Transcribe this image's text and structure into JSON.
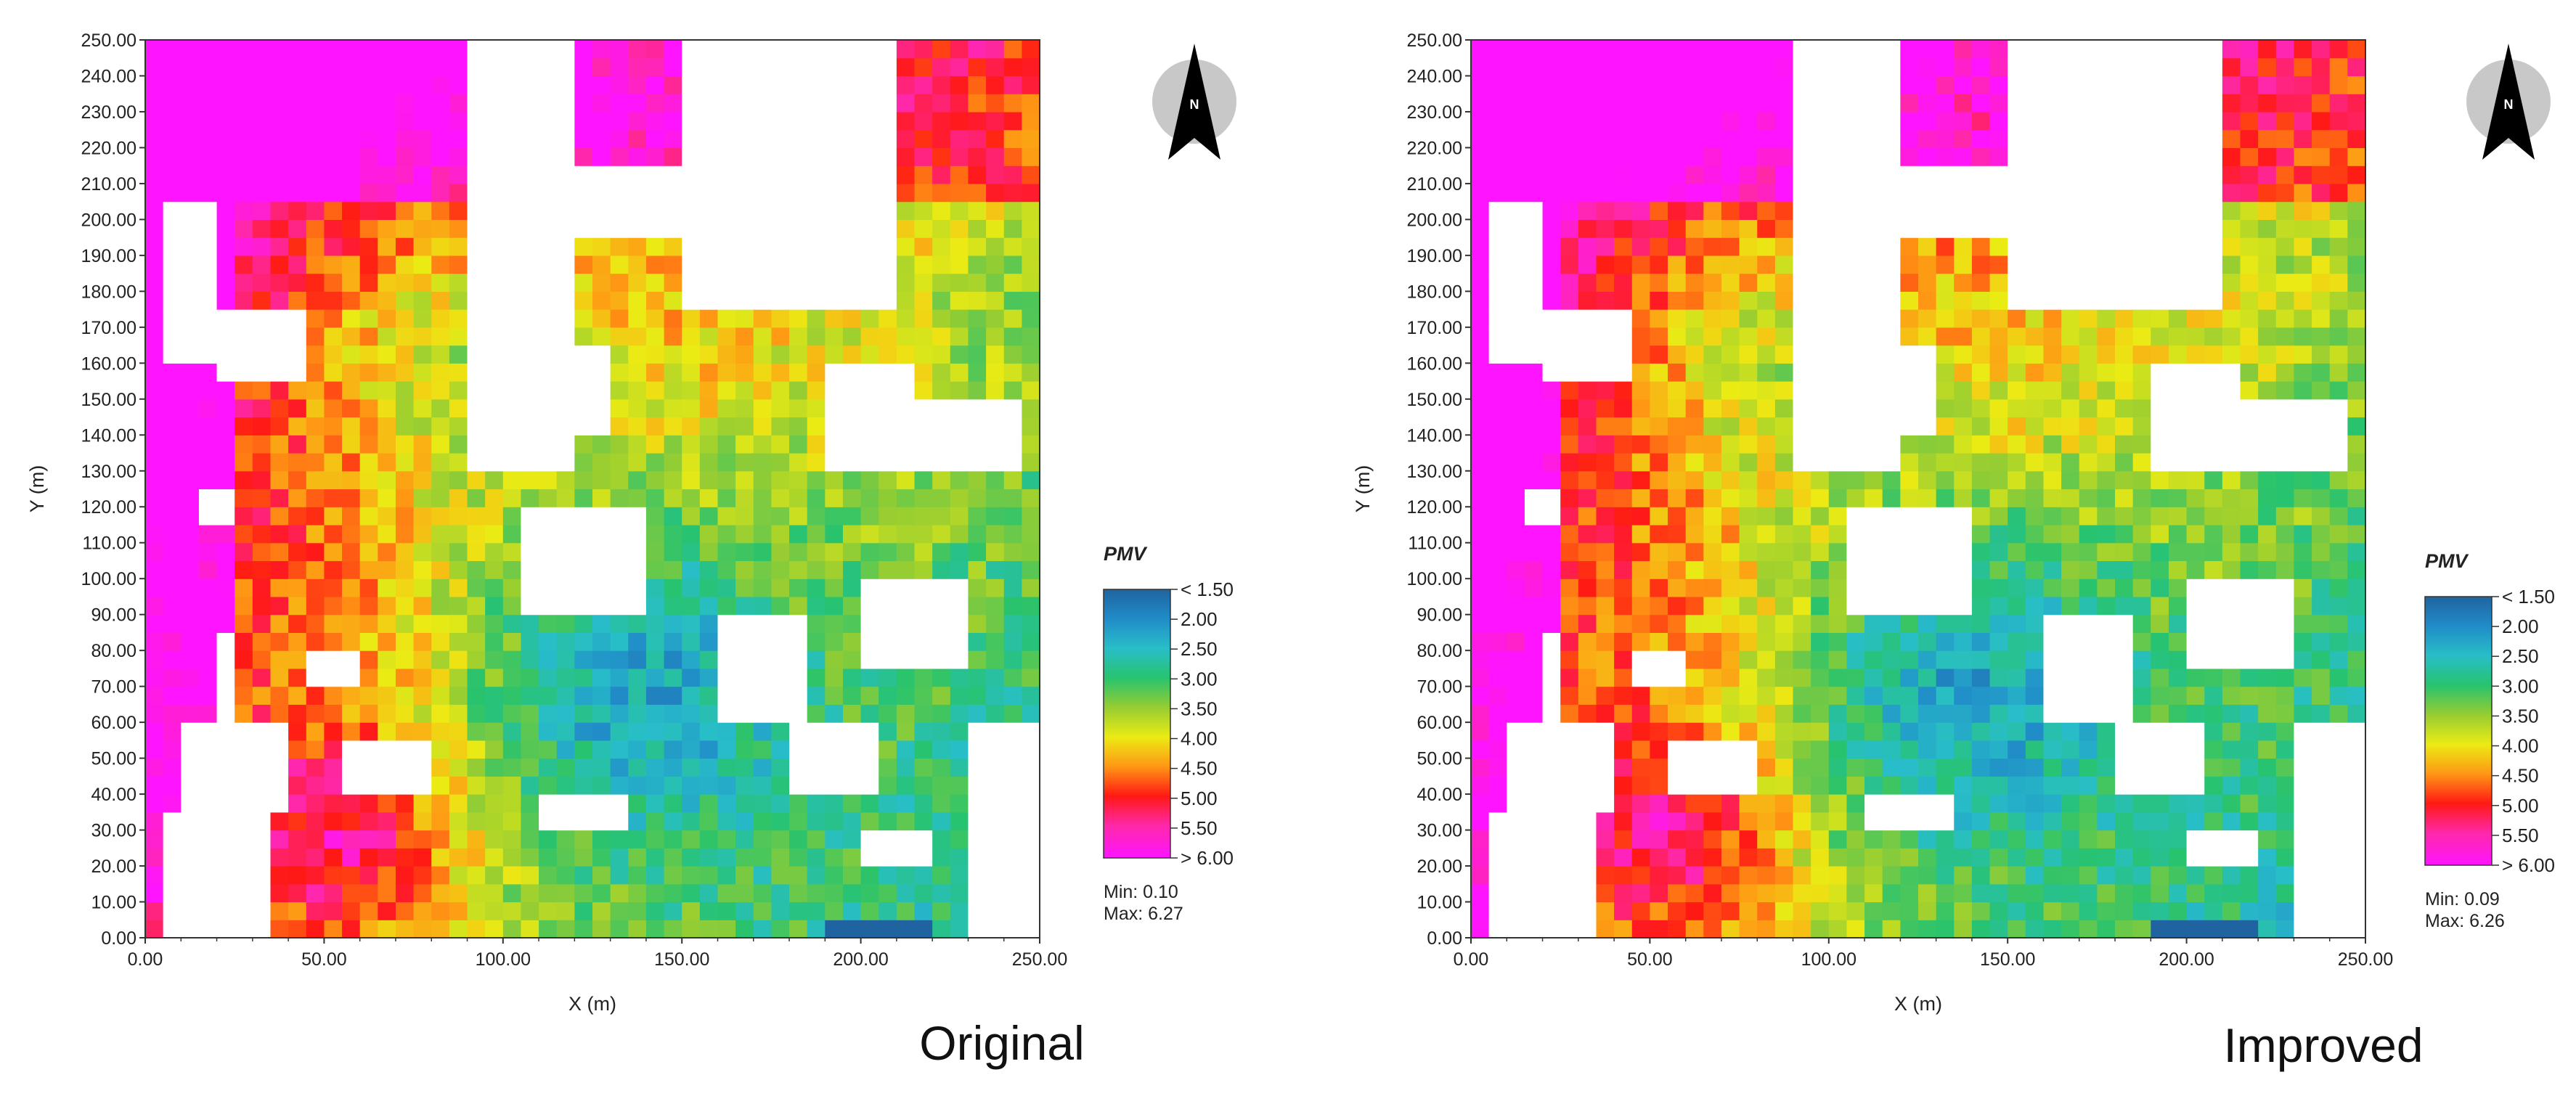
{
  "chart_data": [
    {
      "type": "heatmap",
      "caption": "Original",
      "xlabel": "X (m)",
      "ylabel": "Y (m)",
      "xlim": [
        0,
        250
      ],
      "ylim": [
        0,
        250
      ],
      "xticks": [
        "0.00",
        "50.00",
        "100.00",
        "150.00",
        "200.00",
        "250.00"
      ],
      "yticks": [
        "0.00",
        "10.00",
        "20.00",
        "30.00",
        "40.00",
        "50.00",
        "60.00",
        "70.00",
        "80.00",
        "90.00",
        "100.00",
        "110.00",
        "120.00",
        "130.00",
        "140.00",
        "150.00",
        "160.00",
        "170.00",
        "180.00",
        "190.00",
        "200.00",
        "210.00",
        "220.00",
        "230.00",
        "240.00",
        "250.00"
      ],
      "legend": {
        "title": "PMV",
        "labels": [
          "< 1.50",
          "2.00",
          "2.50",
          "3.00",
          "3.50",
          "4.00",
          "4.50",
          "5.00",
          "5.50",
          "> 6.00"
        ],
        "min_label": "Min: 0.10",
        "max_label": "Max: 6.27"
      },
      "north_label": "N"
    },
    {
      "type": "heatmap",
      "caption": "Improved",
      "xlabel": "X (m)",
      "ylabel": "Y (m)",
      "xlim": [
        0,
        250
      ],
      "ylim": [
        0,
        250
      ],
      "xticks": [
        "0.00",
        "50.00",
        "100.00",
        "150.00",
        "200.00",
        "250.00"
      ],
      "yticks": [
        "0.00",
        "10.00",
        "20.00",
        "30.00",
        "40.00",
        "50.00",
        "60.00",
        "70.00",
        "80.00",
        "90.00",
        "100.00",
        "110.00",
        "120.00",
        "130.00",
        "140.00",
        "150.00",
        "160.00",
        "170.00",
        "180.00",
        "190.00",
        "200.00",
        "210.00",
        "220.00",
        "230.00",
        "240.00",
        "250.00"
      ],
      "legend": {
        "title": "PMV",
        "labels": [
          "< 1.50",
          "2.00",
          "2.50",
          "3.00",
          "3.50",
          "4.00",
          "4.50",
          "5.00",
          "5.50",
          "> 6.00"
        ],
        "min_label": "Min: 0.09",
        "max_label": "Max: 6.26"
      },
      "north_label": "N"
    }
  ]
}
